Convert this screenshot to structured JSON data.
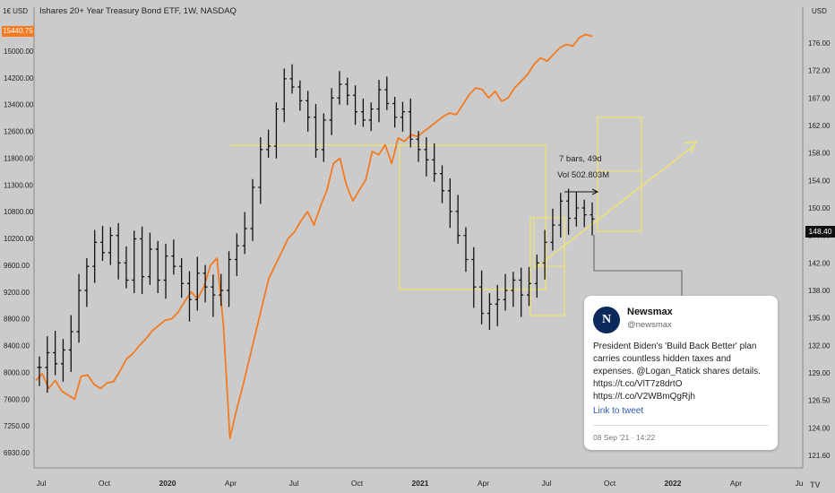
{
  "chart_data": {
    "type": "line",
    "title": "Ishares 20+ Year Treasury Bond ETF, 1W, NASDAQ",
    "currency": "USD",
    "x_ticks": [
      "Jul",
      "Oct",
      "2020",
      "Apr",
      "Jul",
      "Oct",
      "2021",
      "Apr",
      "Jul",
      "Oct",
      "2022",
      "Apr",
      "Ju"
    ],
    "left_axis": {
      "ticks": [
        "15000.00",
        "14200.00",
        "13400.00",
        "12600.00",
        "11800.00",
        "11300.00",
        "10800.00",
        "10200.00",
        "9600.00",
        "9200.00",
        "8800.00",
        "8400.00",
        "8000.00",
        "7600.00",
        "7250.00",
        "6930.00"
      ],
      "unit_label": "1€ USD",
      "current_value": "15440.75"
    },
    "right_axis": {
      "ticks": [
        "176.00",
        "172.00",
        "167.00",
        "162.00",
        "158.00",
        "154.00",
        "150.00",
        "146.00",
        "142.00",
        "138.00",
        "135.00",
        "132.00",
        "129.00",
        "126.50",
        "124.00",
        "121.60"
      ],
      "current_value": "148.40"
    },
    "series": [
      {
        "color": "#f47a20",
        "kind": "line",
        "points": [
          [
            0,
            7880
          ],
          [
            1,
            7980
          ],
          [
            2,
            7760
          ],
          [
            3,
            7880
          ],
          [
            4,
            7720
          ],
          [
            5,
            7660
          ],
          [
            6,
            7600
          ],
          [
            7,
            7940
          ],
          [
            8,
            7960
          ],
          [
            9,
            7820
          ],
          [
            10,
            7760
          ],
          [
            11,
            7840
          ],
          [
            12,
            7860
          ],
          [
            13,
            8020
          ],
          [
            14,
            8200
          ],
          [
            15,
            8280
          ],
          [
            16,
            8400
          ],
          [
            17,
            8500
          ],
          [
            18,
            8620
          ],
          [
            19,
            8700
          ],
          [
            20,
            8780
          ],
          [
            21,
            8800
          ],
          [
            22,
            8900
          ],
          [
            23,
            9060
          ],
          [
            24,
            9200
          ],
          [
            25,
            9100
          ],
          [
            26,
            9280
          ],
          [
            27,
            9600
          ],
          [
            28,
            9760
          ],
          [
            29,
            8700
          ],
          [
            30,
            7100
          ],
          [
            31,
            7450
          ],
          [
            32,
            7800
          ],
          [
            33,
            8200
          ],
          [
            34,
            8600
          ],
          [
            35,
            9000
          ],
          [
            36,
            9400
          ],
          [
            37,
            9600
          ],
          [
            38,
            9900
          ],
          [
            39,
            10200
          ],
          [
            40,
            10350
          ],
          [
            41,
            10600
          ],
          [
            42,
            10800
          ],
          [
            43,
            10500
          ],
          [
            44,
            10900
          ],
          [
            45,
            11200
          ],
          [
            46,
            11700
          ],
          [
            47,
            11800
          ],
          [
            48,
            11300
          ],
          [
            49,
            11000
          ],
          [
            50,
            11200
          ],
          [
            51,
            11400
          ],
          [
            52,
            12000
          ],
          [
            53,
            11900
          ],
          [
            54,
            12200
          ],
          [
            55,
            11700
          ],
          [
            56,
            12400
          ],
          [
            57,
            12300
          ],
          [
            58,
            12500
          ],
          [
            59,
            12450
          ],
          [
            60,
            12600
          ],
          [
            61,
            12750
          ],
          [
            62,
            12900
          ],
          [
            63,
            13050
          ],
          [
            64,
            13150
          ],
          [
            65,
            13100
          ],
          [
            66,
            13400
          ],
          [
            67,
            13700
          ],
          [
            68,
            13900
          ],
          [
            69,
            13850
          ],
          [
            70,
            13600
          ],
          [
            71,
            13800
          ],
          [
            72,
            13500
          ],
          [
            73,
            13600
          ],
          [
            74,
            13900
          ],
          [
            75,
            14100
          ],
          [
            76,
            14300
          ],
          [
            77,
            14600
          ],
          [
            78,
            14800
          ],
          [
            79,
            14700
          ],
          [
            80,
            14900
          ],
          [
            81,
            15100
          ],
          [
            82,
            15200
          ],
          [
            83,
            15150
          ],
          [
            84,
            15400
          ],
          [
            85,
            15500
          ],
          [
            86,
            15440
          ]
        ]
      },
      {
        "color": "#111111",
        "kind": "ohlc",
        "points": [
          [
            0,
            129.6
          ],
          [
            1,
            131.2
          ],
          [
            2,
            130.0
          ],
          [
            3,
            131.5
          ],
          [
            4,
            133.5
          ],
          [
            5,
            138.0
          ],
          [
            6,
            141.5
          ],
          [
            7,
            145.0
          ],
          [
            8,
            143.5
          ],
          [
            9,
            146.0
          ],
          [
            10,
            142.0
          ],
          [
            11,
            139.5
          ],
          [
            12,
            145.5
          ],
          [
            13,
            140.0
          ],
          [
            14,
            144.0
          ],
          [
            15,
            139.5
          ],
          [
            16,
            143.0
          ],
          [
            17,
            141.5
          ],
          [
            18,
            139.0
          ],
          [
            19,
            137.0
          ],
          [
            20,
            140.5
          ],
          [
            21,
            138.5
          ],
          [
            22,
            137.5
          ],
          [
            23,
            138.0
          ],
          [
            24,
            142.5
          ],
          [
            25,
            144.5
          ],
          [
            26,
            147.0
          ],
          [
            27,
            153.0
          ],
          [
            28,
            158.5
          ],
          [
            29,
            159.0
          ],
          [
            30,
            165.0
          ],
          [
            31,
            170.5
          ],
          [
            32,
            169.0
          ],
          [
            33,
            166.5
          ],
          [
            34,
            163.5
          ],
          [
            35,
            158.5
          ],
          [
            36,
            163.0
          ],
          [
            37,
            167.0
          ],
          [
            38,
            169.5
          ],
          [
            39,
            167.5
          ],
          [
            40,
            164.5
          ],
          [
            41,
            163.0
          ],
          [
            42,
            165.0
          ],
          [
            43,
            168.5
          ],
          [
            44,
            166.0
          ],
          [
            45,
            163.5
          ],
          [
            46,
            164.5
          ],
          [
            47,
            160.0
          ],
          [
            48,
            158.5
          ],
          [
            49,
            157.0
          ],
          [
            50,
            155.0
          ],
          [
            51,
            152.5
          ],
          [
            52,
            149.5
          ],
          [
            53,
            146.0
          ],
          [
            54,
            142.5
          ],
          [
            55,
            138.5
          ],
          [
            56,
            135.5
          ],
          [
            57,
            136.5
          ],
          [
            58,
            137.0
          ],
          [
            59,
            138.0
          ],
          [
            60,
            139.5
          ],
          [
            61,
            137.5
          ],
          [
            62,
            139.0
          ],
          [
            63,
            142.0
          ],
          [
            64,
            145.0
          ],
          [
            65,
            147.5
          ],
          [
            66,
            151.0
          ],
          [
            67,
            148.5
          ],
          [
            68,
            150.0
          ],
          [
            69,
            149.0
          ],
          [
            70,
            148.4
          ]
        ]
      }
    ],
    "annotations": {
      "bars_label": "7 bars, 49d",
      "vol_label": "Vol 502.803M"
    },
    "watermark": "TV"
  },
  "tweet": {
    "avatar_letter": "N",
    "name": "Newsmax",
    "handle": "@newsmax",
    "text": "President Biden's 'Build Back Better' plan carries countless hidden taxes and expenses. @Logan_Ratick shares details. https://t.co/VlT7z8drtO https://t.co/V2WBmQgRjh",
    "link_label": "Link to tweet",
    "date": "08 Sep '21 · 14:22"
  },
  "colors": {
    "background": "#cbcbcb",
    "orange": "#f47a20",
    "bars": "#111111",
    "yellow": "#f2e46b"
  }
}
